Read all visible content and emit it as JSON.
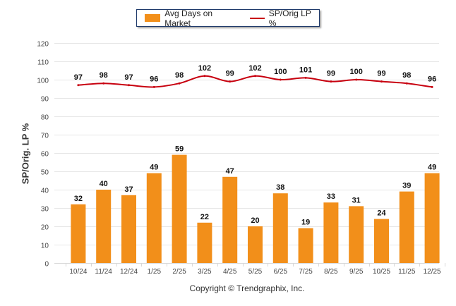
{
  "chart_data": {
    "type": "bar",
    "title": "",
    "xlabel": "",
    "ylabel": "SP/Orig. LP %",
    "ylim": [
      0,
      120
    ],
    "yticks": [
      0,
      10,
      20,
      30,
      40,
      50,
      60,
      70,
      80,
      90,
      100,
      110,
      120
    ],
    "grid": true,
    "legend_position": "top-center",
    "categories": [
      "10/24",
      "11/24",
      "12/24",
      "1/25",
      "2/25",
      "3/25",
      "4/25",
      "5/25",
      "6/25",
      "7/25",
      "8/25",
      "9/25",
      "10/25",
      "11/25",
      "12/25"
    ],
    "series": [
      {
        "name": "Avg Days on Market",
        "type": "bar",
        "color": "#f28f1a",
        "values": [
          32,
          40,
          37,
          49,
          59,
          22,
          47,
          20,
          38,
          19,
          33,
          31,
          24,
          39,
          49
        ]
      },
      {
        "name": "SP/Orig LP %",
        "type": "line",
        "color": "#c8000f",
        "values": [
          97,
          98,
          97,
          96,
          98,
          102,
          99,
          102,
          100,
          101,
          99,
          100,
          99,
          98,
          96
        ]
      }
    ]
  },
  "footer": {
    "copyright": "Copyright © Trendgraphix, Inc."
  }
}
